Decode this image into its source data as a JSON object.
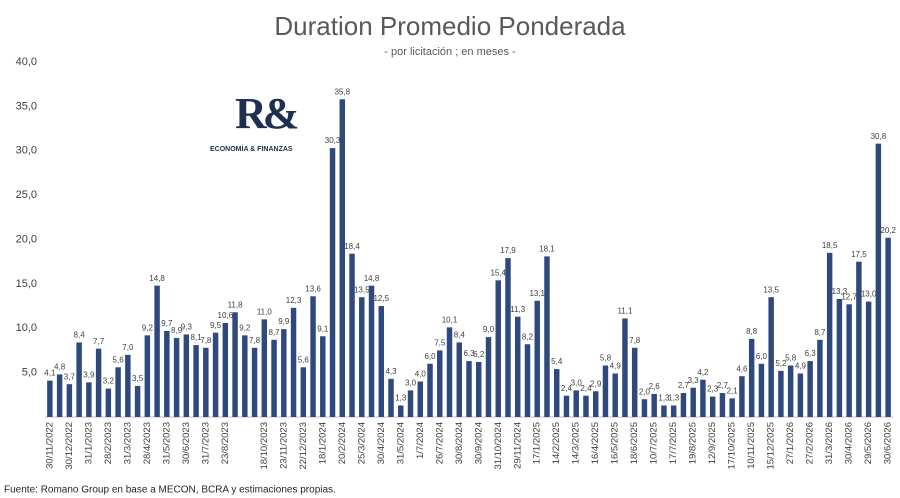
{
  "chart_data": {
    "type": "bar",
    "title": "Duration Promedio Ponderada",
    "subtitle": "- por licitación ; en meses -",
    "source": "Fuente: Romano Group en base a MECON, BCRA y estimaciones propias.",
    "logo": {
      "mark": "R&",
      "text": "ECONOMÍA & FINANZAS"
    },
    "color": "#2e4a7d",
    "ylim": [
      0,
      40
    ],
    "yticks": [
      {
        "value": 5,
        "label": "5,0"
      },
      {
        "value": 10,
        "label": "10,0"
      },
      {
        "value": 15,
        "label": "15,0"
      },
      {
        "value": 20,
        "label": "20,0"
      },
      {
        "value": 25,
        "label": "25,0"
      },
      {
        "value": 30,
        "label": "30,0"
      },
      {
        "value": 35,
        "label": "35,0"
      },
      {
        "value": 40,
        "label": "40,0"
      }
    ],
    "categories": [
      "30/11/2022",
      null,
      "30/12/2022",
      null,
      "31/1/2023",
      null,
      "28/2/2023",
      null,
      "31/3/2023",
      null,
      "28/4/2023",
      null,
      "31/5/2023",
      null,
      "30/6/2023",
      null,
      "31/7/2023",
      null,
      "23/8/2023",
      null,
      null,
      null,
      "18/10/2023",
      null,
      "23/11/2023",
      null,
      "22/12/2023",
      null,
      "18/1/2024",
      null,
      "20/2/2024",
      null,
      "25/3/2024",
      null,
      "30/4/2024",
      null,
      "31/5/2024",
      null,
      "1/7/2024",
      null,
      "26/7/2024",
      null,
      "30/8/2024",
      null,
      "30/9/2024",
      null,
      "31/10/2024",
      null,
      "29/11/2024",
      null,
      "17/1/2025",
      null,
      "14/2/2025",
      null,
      "14/3/2025",
      null,
      "16/4/2025",
      null,
      "16/5/2025",
      null,
      "18/6/2025",
      null,
      "10/7/2025",
      null,
      "17/7/2025",
      null,
      "19/8/2025",
      null,
      "12/9/2025",
      null,
      "17/10/2025",
      null,
      "10/11/2025",
      null,
      "15/12/2025",
      null,
      "27/1/2026",
      null,
      "27/2/2026",
      null,
      "31/3/2026",
      null,
      "30/4/2026",
      null,
      "29/5/2026",
      null,
      "30/6/2026"
    ],
    "values": [
      4.1,
      4.8,
      3.7,
      8.4,
      3.9,
      7.7,
      3.2,
      5.6,
      7.0,
      3.5,
      9.2,
      14.8,
      9.7,
      8.9,
      9.3,
      8.1,
      7.8,
      9.5,
      10.6,
      11.8,
      9.2,
      7.8,
      11.0,
      8.7,
      9.9,
      12.3,
      5.6,
      13.6,
      9.1,
      30.3,
      35.8,
      18.4,
      13.5,
      14.8,
      12.5,
      4.3,
      1.3,
      3.0,
      4.0,
      6.0,
      7.5,
      10.1,
      8.4,
      6.3,
      6.2,
      9.0,
      15.4,
      17.9,
      11.3,
      8.2,
      13.1,
      18.1,
      5.4,
      2.4,
      3.0,
      2.4,
      2.9,
      5.8,
      4.9,
      11.1,
      7.8,
      2.0,
      2.6,
      1.3,
      1.3,
      2.7,
      3.3,
      4.2,
      2.3,
      2.7,
      2.1,
      4.6,
      8.8,
      6.0,
      13.5,
      5.2,
      5.8,
      4.9,
      6.3,
      8.7,
      18.5,
      13.3,
      12.7,
      17.5,
      13.0,
      30.8,
      20.2
    ],
    "value_labels": [
      "4,1",
      "4,8",
      "3,7",
      "8,4",
      "3,9",
      "7,7",
      "3,2",
      "5,6",
      "7,0",
      "3,5",
      "9,2",
      "14,8",
      "9,7",
      "8,9",
      "9,3",
      "8,1",
      "7,8",
      "9,5",
      "10,6",
      "11,8",
      "9,2",
      "7,8",
      "11,0",
      "8,7",
      "9,9",
      "12,3",
      "5,6",
      "13,6",
      "9,1",
      "30,3",
      "35,8",
      "18,4",
      "13,5",
      "14,8",
      "12,5",
      "4,3",
      "1,3",
      "3,0",
      "4,0",
      "6,0",
      "7,5",
      "10,1",
      "8,4",
      "6,3",
      "6,2",
      "9,0",
      "15,4",
      "17,9",
      "11,3",
      "8,2",
      "13,1",
      "18,1",
      "5,4",
      "2,4",
      "3,0",
      "2,4",
      "2,9",
      "5,8",
      "4,9",
      "11,1",
      "7,8",
      "2,0",
      "2,6",
      "1,3",
      "1,3",
      "2,7",
      "3,3",
      "4,2",
      "2,3",
      "2,7",
      "2,1",
      "4,6",
      "8,8",
      "6,0",
      "13,5",
      "5,2",
      "5,8",
      "4,9",
      "6,3",
      "8,7",
      "18,5",
      "13,3",
      "12,7",
      "17,5",
      "13,0",
      "30,8",
      "20,2"
    ]
  }
}
